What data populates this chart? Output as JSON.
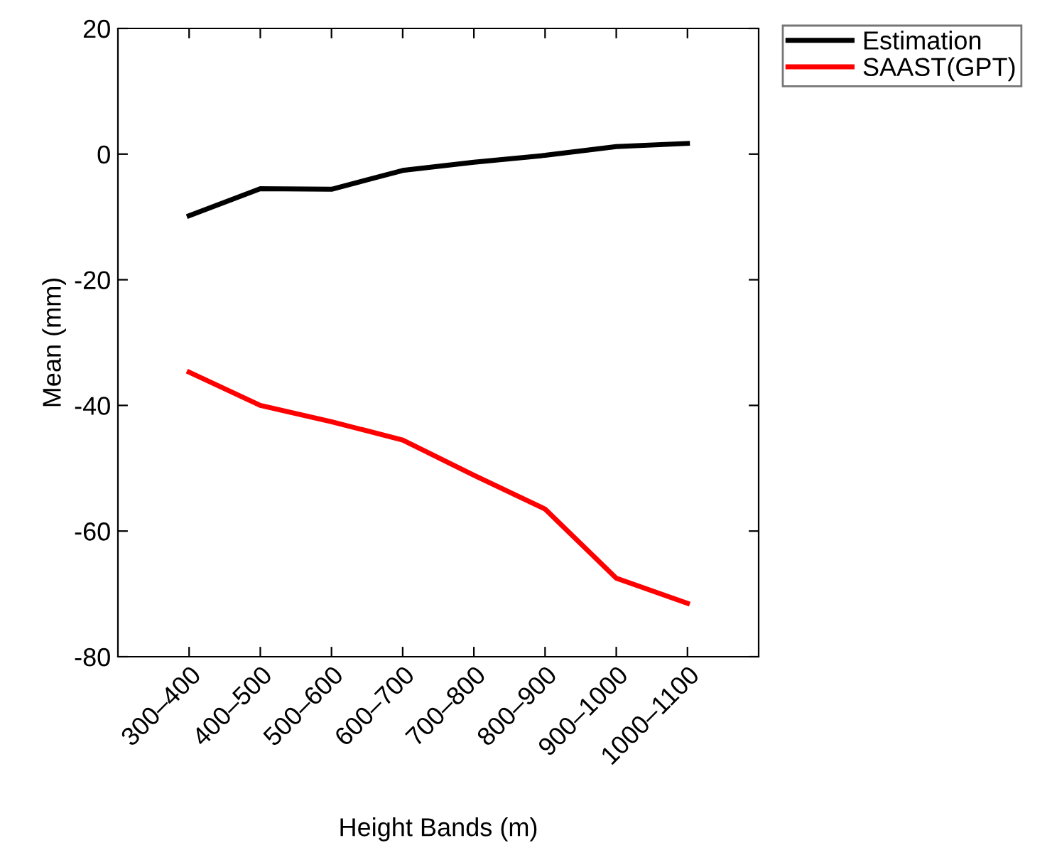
{
  "chart_data": {
    "type": "line",
    "xlabel": "Height Bands (m)",
    "ylabel": "Mean (mm)",
    "categories": [
      "300–400",
      "400–500",
      "500–600",
      "600–700",
      "700–800",
      "800–900",
      "900–1000",
      "1000–1100"
    ],
    "series": [
      {
        "name": "Estimation",
        "color": "#000000",
        "values": [
          -9.8,
          -5.5,
          -5.6,
          -2.6,
          -1.3,
          -0.2,
          1.2,
          1.7
        ]
      },
      {
        "name": "SAAST(GPT)",
        "color": "#ff0000",
        "values": [
          -34.7,
          -40.0,
          -42.6,
          -45.5,
          -51.1,
          -56.5,
          -67.5,
          -71.5
        ]
      }
    ],
    "ylim": [
      -80,
      20
    ],
    "yticks": [
      -80,
      -60,
      -40,
      -20,
      0,
      20
    ],
    "grid": false,
    "legend": "top right",
    "line_style": "solid",
    "marker": "none"
  }
}
